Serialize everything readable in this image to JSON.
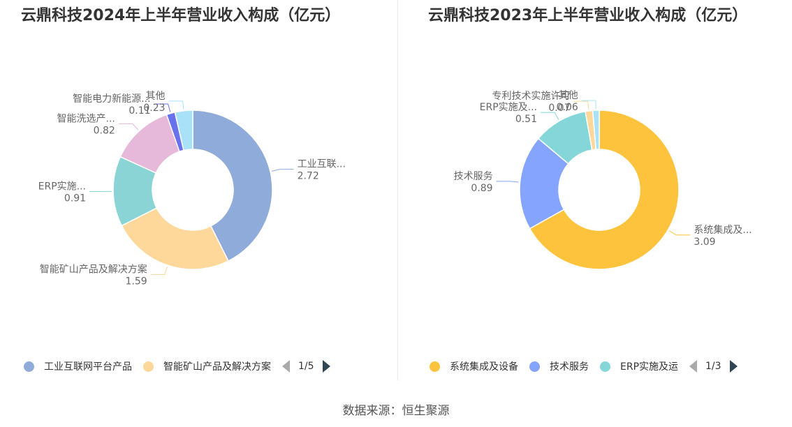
{
  "source": "数据来源：恒生聚源",
  "chart_data": [
    {
      "type": "pie",
      "title": "云鼎科技2024年上半年营业收入构成（亿元）",
      "slices": [
        {
          "label": "工业互联...",
          "value": 2.72,
          "color": "#8eabd9"
        },
        {
          "label": "智能矿山产品及解决方案",
          "value": 1.59,
          "color": "#fdd89a"
        },
        {
          "label": "ERP实施...",
          "value": 0.91,
          "color": "#8ad4d6"
        },
        {
          "label": "智能洗选产...",
          "value": 0.82,
          "color": "#e6b8d9"
        },
        {
          "label": "智能电力新能源...",
          "value": 0.11,
          "color": "#6772ec"
        },
        {
          "label": "其他",
          "value": 0.23,
          "color": "#a9e2f8"
        }
      ],
      "legend": {
        "items": [
          {
            "label": "工业互联网平台产品",
            "color": "#8eabd9"
          },
          {
            "label": "智能矿山产品及解决方案",
            "color": "#fdd89a"
          }
        ],
        "page": "1/5"
      }
    },
    {
      "type": "pie",
      "title": "云鼎科技2023年上半年营业收入构成（亿元）",
      "slices": [
        {
          "label": "系统集成及...",
          "value": 3.09,
          "color": "#fdc33d"
        },
        {
          "label": "技术服务",
          "value": 0.89,
          "color": "#85a4fe"
        },
        {
          "label": "ERP实施及...",
          "value": 0.51,
          "color": "#85d6d9"
        },
        {
          "label": "专利技术实施许可",
          "value": 0.07,
          "color": "#fdd89a"
        },
        {
          "label": "其他",
          "value": 0.06,
          "color": "#a9e2f8"
        }
      ],
      "legend": {
        "items": [
          {
            "label": "系统集成及设备",
            "color": "#fdc33d"
          },
          {
            "label": "技术服务",
            "color": "#85a4fe"
          },
          {
            "label": "ERP实施及运",
            "color": "#85d6d9"
          }
        ],
        "page": "1/3"
      }
    }
  ]
}
